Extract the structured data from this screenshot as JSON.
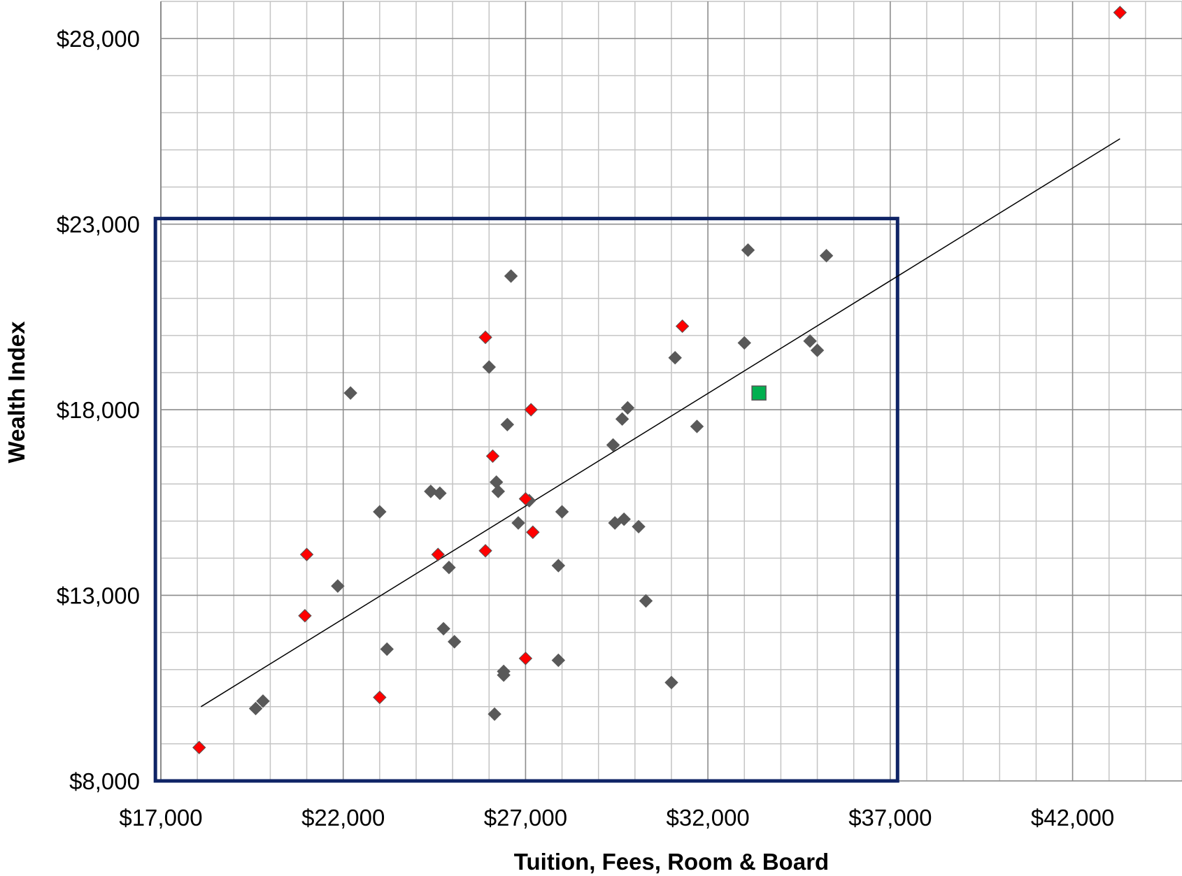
{
  "colors": {
    "grid_major": "#8c8c8c",
    "grid_minor": "#c4c4c4",
    "gray_point": "#595959",
    "red_point": "#ff0000",
    "green_point": "#00b050",
    "trendline": "#000000",
    "highlight_box": "#0f2466"
  },
  "chart_data": {
    "type": "scatter",
    "title": "",
    "xlabel": "Tuition, Fees, Room & Board",
    "ylabel": "Wealth Index",
    "xlim": [
      17000,
      45000
    ],
    "ylim": [
      8000,
      29000
    ],
    "x_ticks": [
      17000,
      22000,
      27000,
      32000,
      37000,
      42000
    ],
    "x_tick_labels": [
      "$17,000",
      "$22,000",
      "$27,000",
      "$32,000",
      "$37,000",
      "$42,000"
    ],
    "y_ticks": [
      8000,
      13000,
      18000,
      23000,
      28000
    ],
    "y_tick_labels": [
      "$8,000",
      "$13,000",
      "$18,000",
      "$23,000",
      "$28,000"
    ],
    "x_minor_step": 1000,
    "y_minor_step": 1000,
    "grid": true,
    "legend": "none",
    "series": [
      {
        "marker": "diamond",
        "color": "gray",
        "points": [
          [
            33100,
            22300
          ],
          [
            35250,
            22150
          ],
          [
            26600,
            21600
          ],
          [
            33000,
            19800
          ],
          [
            34800,
            19850
          ],
          [
            35000,
            19600
          ],
          [
            31100,
            19400
          ],
          [
            26000,
            19150
          ],
          [
            22200,
            18450
          ],
          [
            29800,
            18050
          ],
          [
            29650,
            17750
          ],
          [
            26500,
            17600
          ],
          [
            31700,
            17550
          ],
          [
            29400,
            17050
          ],
          [
            26200,
            16050
          ],
          [
            26250,
            15800
          ],
          [
            24400,
            15800
          ],
          [
            24650,
            15750
          ],
          [
            27100,
            15550
          ],
          [
            23000,
            15250
          ],
          [
            28000,
            15250
          ],
          [
            29700,
            15050
          ],
          [
            29450,
            14950
          ],
          [
            26800,
            14950
          ],
          [
            30100,
            14850
          ],
          [
            24900,
            13750
          ],
          [
            27900,
            13800
          ],
          [
            21850,
            13250
          ],
          [
            30300,
            12850
          ],
          [
            24750,
            12100
          ],
          [
            25050,
            11750
          ],
          [
            23200,
            11550
          ],
          [
            27900,
            11250
          ],
          [
            26400,
            10950
          ],
          [
            26400,
            10850
          ],
          [
            31000,
            10650
          ],
          [
            19800,
            10150
          ],
          [
            19600,
            9950
          ],
          [
            26150,
            9800
          ]
        ]
      },
      {
        "marker": "diamond",
        "color": "red",
        "points": [
          [
            43300,
            28700
          ],
          [
            31300,
            20250
          ],
          [
            25900,
            19950
          ],
          [
            27150,
            18000
          ],
          [
            26100,
            16750
          ],
          [
            27000,
            15600
          ],
          [
            27200,
            14700
          ],
          [
            21000,
            14100
          ],
          [
            24600,
            14100
          ],
          [
            25900,
            14200
          ],
          [
            20950,
            12450
          ],
          [
            27000,
            11300
          ],
          [
            23000,
            10250
          ],
          [
            18050,
            8900
          ]
        ]
      },
      {
        "marker": "square",
        "color": "green",
        "points": [
          [
            33400,
            18450
          ]
        ]
      }
    ],
    "trendline": {
      "x": [
        18100,
        43300
      ],
      "y": [
        10000,
        25300
      ]
    },
    "highlight_box": {
      "x": [
        16850,
        37200
      ],
      "y": [
        8000,
        23150
      ]
    }
  }
}
